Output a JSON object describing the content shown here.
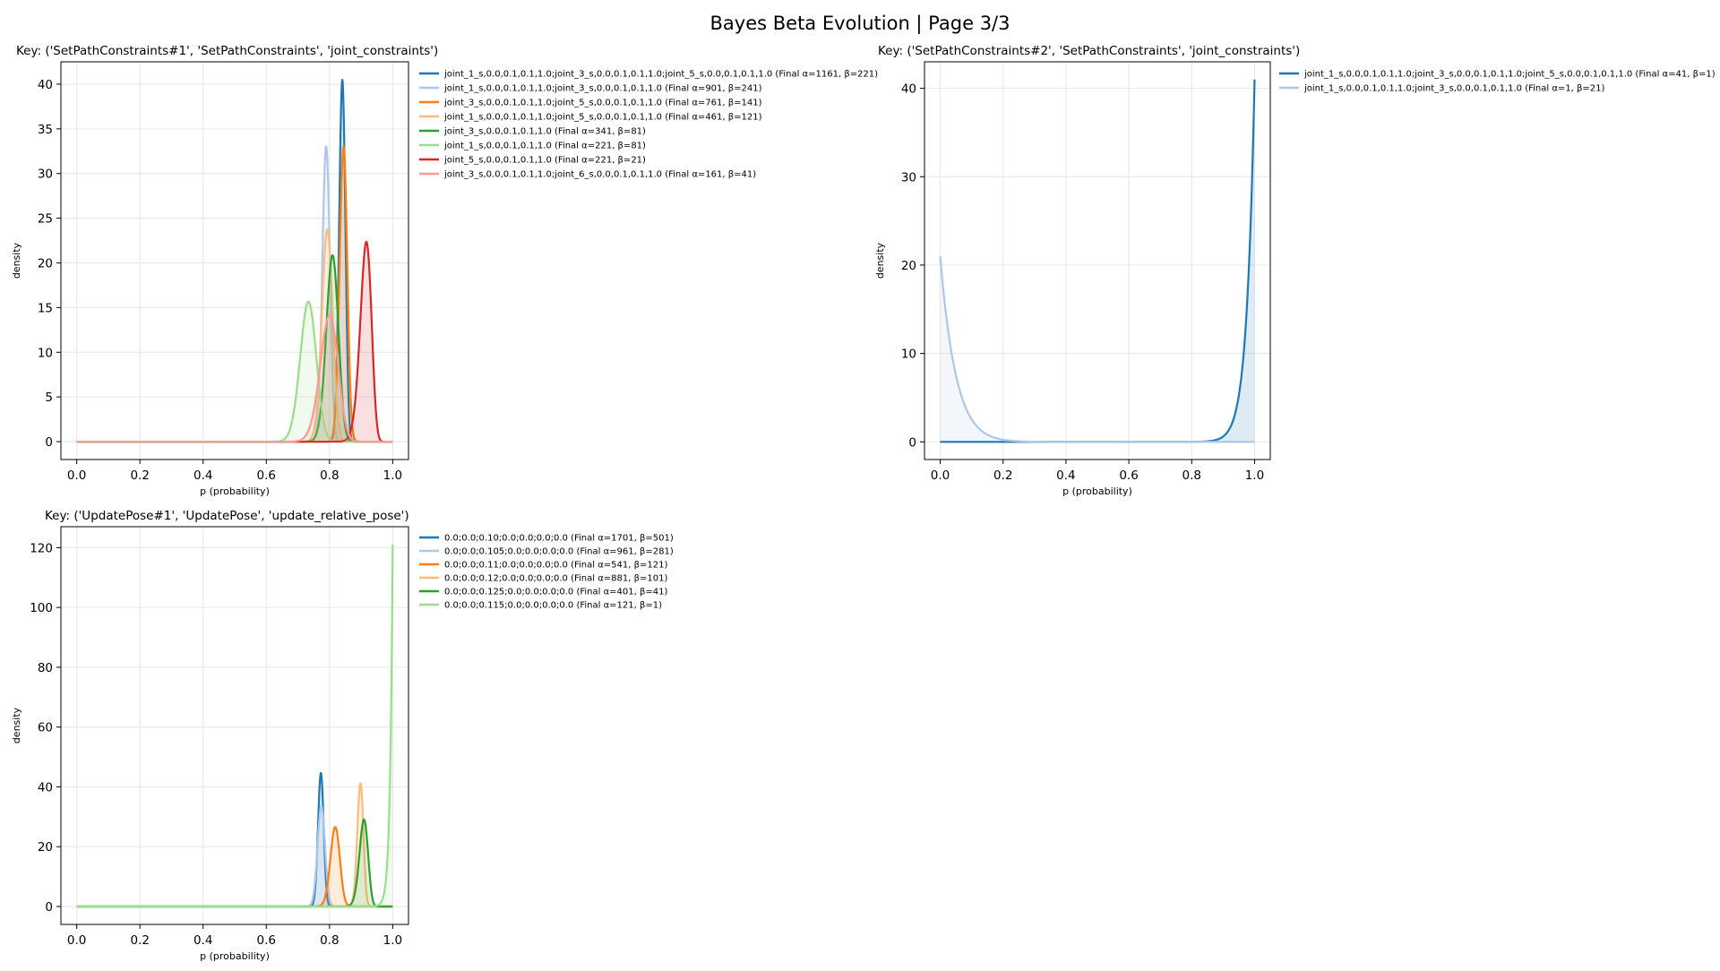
{
  "page": {
    "title": "Bayes Beta Evolution | Page 3/3"
  },
  "colors": {
    "tab_blue": "#1f77b4",
    "tab_blue_light": "#aec7e8",
    "tab_orange": "#ff7f0e",
    "tab_orange_light": "#ffbb78",
    "tab_green": "#2ca02c",
    "tab_green_light": "#98df8a",
    "tab_red": "#d62728",
    "tab_red_light": "#ff9896",
    "grid": "#e6e6e6"
  },
  "chart_data": [
    {
      "type": "line",
      "title": "Key: ('SetPathConstraints#1', 'SetPathConstraints', 'joint_constraints')",
      "xlabel": "p (probability)",
      "ylabel": "density",
      "xlim": [
        -0.05,
        1.05
      ],
      "ylim": [
        -2.0,
        42.5
      ],
      "xticks": [
        "0.0",
        "0.2",
        "0.4",
        "0.6",
        "0.8",
        "1.0"
      ],
      "xtick_values": [
        0,
        0.2,
        0.4,
        0.6,
        0.8,
        1.0
      ],
      "yticks": [
        "0",
        "5",
        "10",
        "15",
        "20",
        "25",
        "30",
        "35",
        "40"
      ],
      "ytick_values": [
        0,
        5,
        10,
        15,
        20,
        25,
        30,
        35,
        40
      ],
      "grid": true,
      "legend_placement": "outside-right",
      "fill_under": true,
      "series": [
        {
          "name": "joint_1_s,0.0,0.1,0.1,1.0;joint_3_s,0.0,0.1,0.1,1.0;joint_5_s,0.0,0.1,0.1,1.0 (Final α=1161, β=221)",
          "alpha": 1161,
          "beta": 221,
          "color": "#1f77b4",
          "peak_p": 0.84,
          "peak_density": 40.3
        },
        {
          "name": "joint_1_s,0.0,0.1,0.1,1.0;joint_3_s,0.0,0.1,0.1,1.0 (Final α=901, β=241)",
          "alpha": 901,
          "beta": 241,
          "color": "#aec7e8",
          "peak_p": 0.789,
          "peak_density": 33.0
        },
        {
          "name": "joint_3_s,0.0,0.1,0.1,1.0;joint_5_s,0.0,0.1,0.1,1.0 (Final α=761, β=141)",
          "alpha": 761,
          "beta": 141,
          "color": "#ff7f0e",
          "peak_p": 0.844,
          "peak_density": 33.0
        },
        {
          "name": "joint_1_s,0.0,0.1,0.1,1.0;joint_5_s,0.0,0.1,0.1,1.0 (Final α=461, β=121)",
          "alpha": 461,
          "beta": 121,
          "color": "#ffbb78",
          "peak_p": 0.793,
          "peak_density": 23.9
        },
        {
          "name": "joint_3_s,0.0,0.1,0.1,1.0 (Final α=341, β=81)",
          "alpha": 341,
          "beta": 81,
          "color": "#2ca02c",
          "peak_p": 0.81,
          "peak_density": 20.9
        },
        {
          "name": "joint_1_s,0.0,0.1,0.1,1.0 (Final α=221, β=81)",
          "alpha": 221,
          "beta": 81,
          "color": "#98df8a",
          "peak_p": 0.733,
          "peak_density": 15.7
        },
        {
          "name": "joint_5_s,0.0,0.1,0.1,1.0 (Final α=221, β=21)",
          "alpha": 221,
          "beta": 21,
          "color": "#d62728",
          "peak_p": 0.917,
          "peak_density": 22.4
        },
        {
          "name": "joint_3_s,0.0,0.1,0.1,1.0;joint_6_s,0.0,0.1,0.1,1.0 (Final α=161, β=41)",
          "alpha": 161,
          "beta": 41,
          "color": "#ff9896",
          "peak_p": 0.8,
          "peak_density": 14.2
        }
      ]
    },
    {
      "type": "line",
      "title": "Key: ('SetPathConstraints#2', 'SetPathConstraints', 'joint_constraints')",
      "xlabel": "p (probability)",
      "ylabel": "density",
      "xlim": [
        -0.05,
        1.05
      ],
      "ylim": [
        -2.0,
        43.0
      ],
      "xticks": [
        "0.0",
        "0.2",
        "0.4",
        "0.6",
        "0.8",
        "1.0"
      ],
      "xtick_values": [
        0,
        0.2,
        0.4,
        0.6,
        0.8,
        1.0
      ],
      "yticks": [
        "0",
        "10",
        "20",
        "30",
        "40"
      ],
      "ytick_values": [
        0,
        10,
        20,
        30,
        40
      ],
      "grid": true,
      "legend_placement": "outside-right",
      "fill_under": true,
      "series": [
        {
          "name": "joint_1_s,0.0,0.1,0.1,1.0;joint_3_s,0.0,0.1,0.1,1.0;joint_5_s,0.0,0.1,0.1,1.0 (Final α=41, β=1)",
          "alpha": 41,
          "beta": 1,
          "color": "#1f77b4",
          "peak_p": 1.0,
          "peak_density": 41.0
        },
        {
          "name": "joint_1_s,0.0,0.1,0.1,1.0;joint_3_s,0.0,0.1,0.1,1.0 (Final α=1, β=21)",
          "alpha": 1,
          "beta": 21,
          "color": "#aec7e8",
          "peak_p": 0.0,
          "peak_density": 21.0
        }
      ]
    },
    {
      "type": "line",
      "title": "Key: ('UpdatePose#1', 'UpdatePose', 'update_relative_pose')",
      "xlabel": "p (probability)",
      "ylabel": "density",
      "xlim": [
        -0.05,
        1.05
      ],
      "ylim": [
        -6.0,
        127.0
      ],
      "xticks": [
        "0.0",
        "0.2",
        "0.4",
        "0.6",
        "0.8",
        "1.0"
      ],
      "xtick_values": [
        0,
        0.2,
        0.4,
        0.6,
        0.8,
        1.0
      ],
      "yticks": [
        "0",
        "20",
        "40",
        "60",
        "80",
        "100",
        "120"
      ],
      "ytick_values": [
        0,
        20,
        40,
        60,
        80,
        100,
        120
      ],
      "grid": true,
      "legend_placement": "outside-right",
      "fill_under": true,
      "series": [
        {
          "name": "0.0;0.0;0.10;0.0;0.0;0.0;0.0 (Final α=1701, β=501)",
          "alpha": 1701,
          "beta": 501,
          "color": "#1f77b4",
          "peak_p": 0.772,
          "peak_density": 44.5
        },
        {
          "name": "0.0;0.0;0.105;0.0;0.0;0.0;0.0 (Final α=961, β=281)",
          "alpha": 961,
          "beta": 281,
          "color": "#aec7e8",
          "peak_p": 0.773,
          "peak_density": 33.3
        },
        {
          "name": "0.0;0.0;0.11;0.0;0.0;0.0;0.0 (Final α=541, β=121)",
          "alpha": 541,
          "beta": 121,
          "color": "#ff7f0e",
          "peak_p": 0.818,
          "peak_density": 26.6
        },
        {
          "name": "0.0;0.0;0.12;0.0;0.0;0.0;0.0 (Final α=881, β=101)",
          "alpha": 881,
          "beta": 101,
          "color": "#ffbb78",
          "peak_p": 0.897,
          "peak_density": 41.4
        },
        {
          "name": "0.0;0.0;0.125;0.0;0.0;0.0;0.0 (Final α=401, β=41)",
          "alpha": 401,
          "beta": 41,
          "color": "#2ca02c",
          "peak_p": 0.909,
          "peak_density": 29.3
        },
        {
          "name": "0.0;0.0;0.115;0.0;0.0;0.0;0.0 (Final α=121, β=1)",
          "alpha": 121,
          "beta": 1,
          "color": "#98df8a",
          "peak_p": 1.0,
          "peak_density": 121.0
        }
      ]
    }
  ]
}
